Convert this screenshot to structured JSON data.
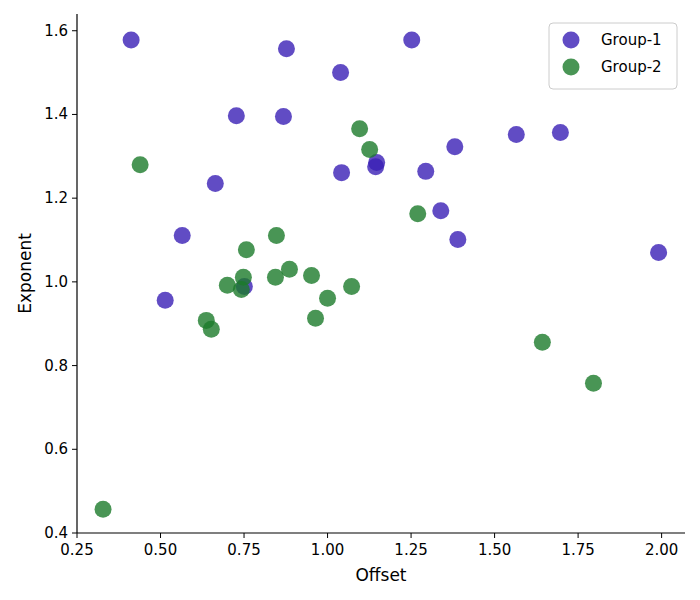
{
  "chart_data": {
    "type": "scatter",
    "x_label": "Offset",
    "y_label": "Exponent",
    "legend": "upper right",
    "grid": false,
    "marker": "circle",
    "xlim": [
      0.25,
      2.07
    ],
    "ylim": [
      0.4,
      1.64
    ],
    "xticks": [
      0.25,
      {
        "value": 0.5,
        "label": "0.50"
      },
      0.75,
      {
        "value": 1.0,
        "label": "1.00"
      },
      1.25,
      {
        "value": 1.5,
        "label": "1.50"
      },
      1.75,
      {
        "value": 2.0,
        "label": "2.00"
      }
    ],
    "yticks": [
      0.4,
      0.6,
      0.8,
      {
        "value": 1.0,
        "label": "1.0"
      },
      1.2,
      1.4,
      1.6
    ],
    "series": [
      {
        "name": "Group-1",
        "color": "#3a1fb5",
        "x": [
          0.412,
          0.877,
          0.727,
          0.868,
          1.039,
          1.252,
          0.664,
          0.565,
          0.514,
          0.751,
          1.042,
          1.147,
          1.144,
          1.294,
          1.381,
          1.339,
          1.39,
          1.565,
          1.697,
          1.991
        ],
        "values": [
          1.578,
          1.557,
          1.397,
          1.395,
          1.5,
          1.578,
          1.235,
          1.111,
          0.956,
          0.989,
          1.261,
          1.285,
          1.275,
          1.264,
          1.323,
          1.17,
          1.101,
          1.352,
          1.357,
          1.07
        ]
      },
      {
        "name": "Group-2",
        "color": "#1b7a2a",
        "x": [
          0.439,
          0.328,
          0.637,
          0.652,
          0.7,
          0.748,
          0.742,
          0.757,
          0.847,
          0.844,
          0.886,
          0.952,
          1.0,
          0.964,
          1.072,
          1.096,
          1.126,
          1.27,
          1.643,
          1.796
        ],
        "values": [
          1.28,
          0.457,
          0.908,
          0.887,
          0.992,
          1.011,
          0.982,
          1.077,
          1.111,
          1.011,
          1.03,
          1.015,
          0.961,
          0.913,
          0.989,
          1.366,
          1.316,
          1.163,
          0.856,
          0.758
        ]
      }
    ]
  }
}
